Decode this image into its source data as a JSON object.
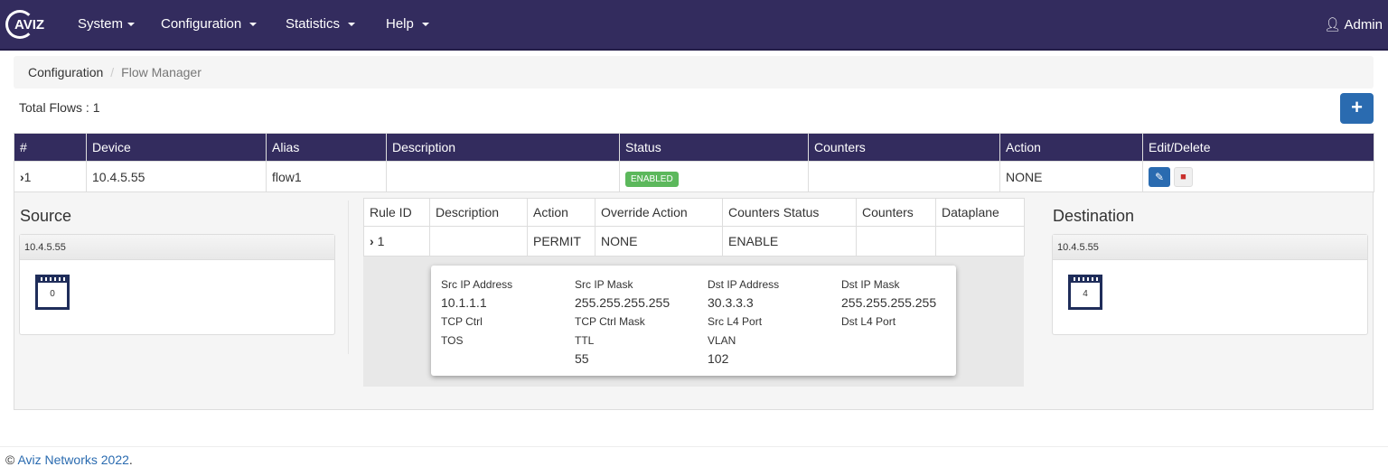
{
  "nav": {
    "brand": "AVIZ",
    "menus": [
      "System",
      "Configuration",
      "Statistics",
      "Help"
    ],
    "user": "Admin"
  },
  "breadcrumb": [
    "Configuration",
    "Flow Manager"
  ],
  "total_flows": "Total Flows : 1",
  "add_label": "+",
  "flows_table": {
    "headers": [
      "#",
      "Device",
      "Alias",
      "Description",
      "Status",
      "Counters",
      "Action",
      "Edit/Delete"
    ],
    "rows": [
      {
        "num": "1",
        "device": "10.4.5.55",
        "alias": "flow1",
        "description": "",
        "status": "ENABLED",
        "counters": "",
        "action": "NONE"
      }
    ]
  },
  "source": {
    "title": "Source",
    "device": "10.4.5.55",
    "port": "0"
  },
  "destination": {
    "title": "Destination",
    "device": "10.4.5.55",
    "port": "4"
  },
  "rules_table": {
    "headers": [
      "Rule ID",
      "Description",
      "Action",
      "Override Action",
      "Counters Status",
      "Counters",
      "Dataplane"
    ],
    "rows": [
      {
        "id": "1",
        "description": "",
        "action": "PERMIT",
        "override": "NONE",
        "counters_status": "ENABLE",
        "counters": "",
        "dataplane": ""
      }
    ]
  },
  "rule_details": [
    {
      "label": "Src IP Address",
      "value": "10.1.1.1"
    },
    {
      "label": "Src IP Mask",
      "value": "255.255.255.255"
    },
    {
      "label": "Dst IP Address",
      "value": "30.3.3.3"
    },
    {
      "label": "Dst IP Mask",
      "value": "255.255.255.255"
    },
    {
      "label": "TCP Ctrl",
      "value": ""
    },
    {
      "label": "TCP Ctrl Mask",
      "value": ""
    },
    {
      "label": "Src L4 Port",
      "value": ""
    },
    {
      "label": "Dst L4 Port",
      "value": ""
    },
    {
      "label": "TOS",
      "value": ""
    },
    {
      "label": "TTL",
      "value": "55"
    },
    {
      "label": "VLAN",
      "value": "102"
    }
  ],
  "footer": {
    "prefix": "© ",
    "link": "Aviz Networks 2022",
    "suffix": "."
  },
  "colors": {
    "navbar": "#332c5e",
    "primary": "#2a6bb0",
    "enabled": "#5cb85c"
  }
}
